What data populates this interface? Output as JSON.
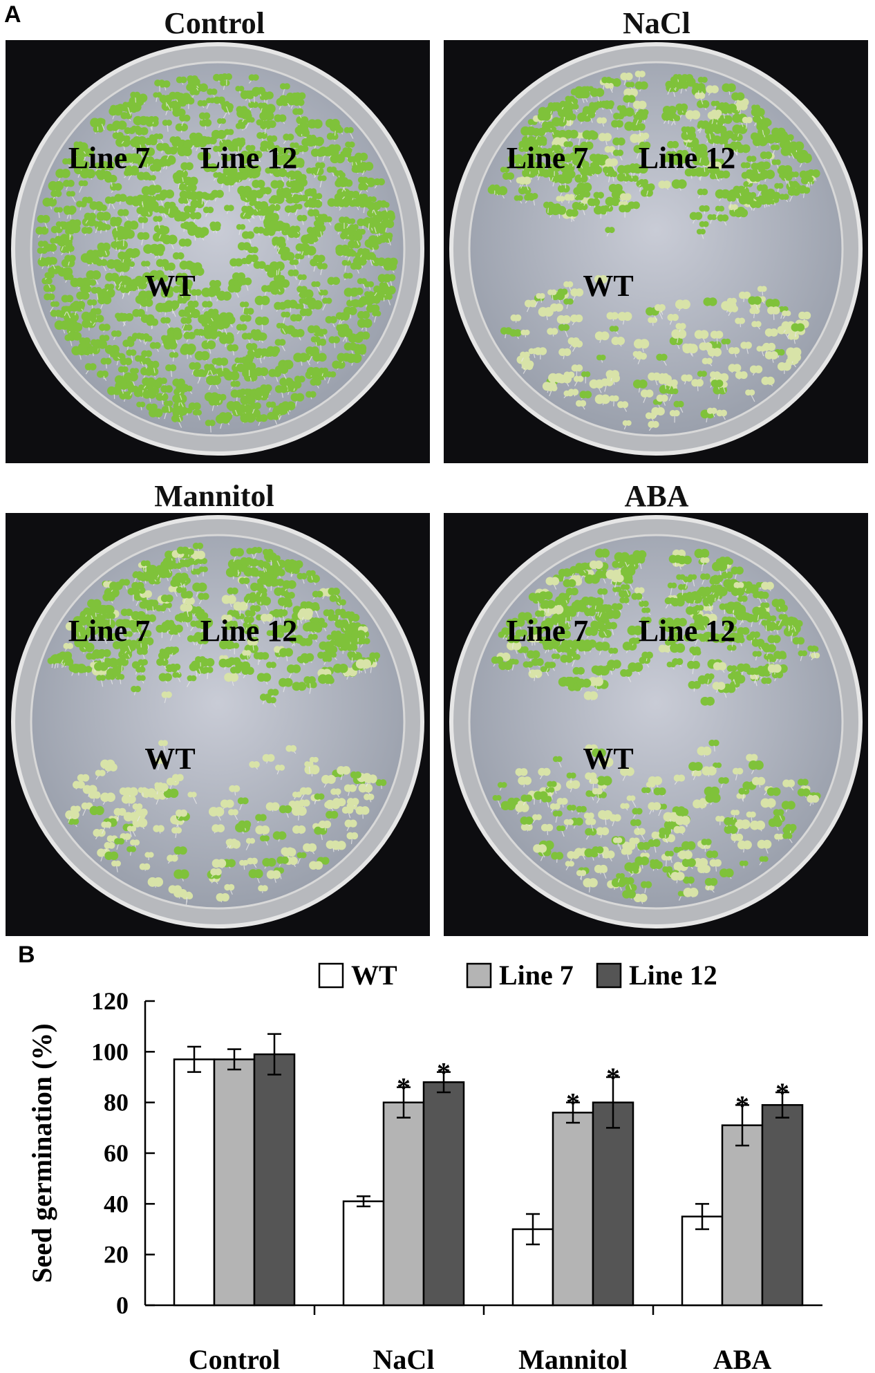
{
  "panel_a": {
    "letter": "A",
    "plates": [
      {
        "title": "Control",
        "labels": [
          "Line 7",
          "Line 12",
          "WT"
        ]
      },
      {
        "title": "NaCl",
        "labels": [
          "Line 7",
          "Line 12",
          "WT"
        ]
      },
      {
        "title": "Mannitol",
        "labels": [
          "Line 7",
          "Line 12",
          "WT"
        ]
      },
      {
        "title": "ABA",
        "labels": [
          "Line 7",
          "Line 12",
          "WT"
        ]
      }
    ],
    "seedling_color": "#7fc23a",
    "pale_seedling_color": "#d8e3a8"
  },
  "panel_b": {
    "letter": "B"
  },
  "chart_data": {
    "type": "bar",
    "title": "",
    "xlabel": "",
    "ylabel": "Seed germination (%)",
    "ylim": [
      0,
      120
    ],
    "yticks": [
      0,
      20,
      40,
      60,
      80,
      100,
      120
    ],
    "categories": [
      "Control",
      "NaCl",
      "Mannitol",
      "ABA"
    ],
    "legend_position": "top",
    "series": [
      {
        "name": "WT",
        "color": "#ffffff",
        "values": [
          97,
          41,
          30,
          35
        ],
        "errors": [
          5,
          2,
          6,
          5
        ],
        "significant": [
          false,
          false,
          false,
          false
        ]
      },
      {
        "name": "Line 7",
        "color": "#b4b4b4",
        "values": [
          97,
          80,
          76,
          71
        ],
        "errors": [
          4,
          6,
          4,
          8
        ],
        "significant": [
          false,
          true,
          true,
          true
        ]
      },
      {
        "name": "Line 12",
        "color": "#555555",
        "values": [
          99,
          88,
          80,
          79
        ],
        "errors": [
          8,
          4,
          10,
          5
        ],
        "significant": [
          false,
          true,
          true,
          true
        ]
      }
    ],
    "significance_marker": "*"
  }
}
